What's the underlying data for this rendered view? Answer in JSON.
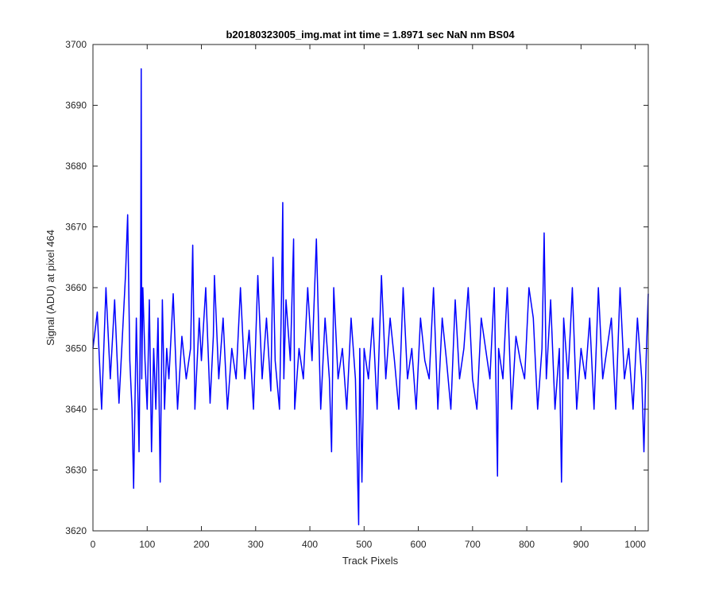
{
  "chart_data": {
    "type": "line",
    "title": "b20180323005_img.mat int time = 1.8971 sec  NaN nm BS04",
    "xlabel": "Track Pixels",
    "ylabel": "Signal (ADU) at pixel 464",
    "xlim": [
      0,
      1024
    ],
    "ylim": [
      3620,
      3700
    ],
    "xticks": [
      0,
      100,
      200,
      300,
      400,
      500,
      600,
      700,
      800,
      900,
      1000
    ],
    "yticks": [
      3620,
      3630,
      3640,
      3650,
      3660,
      3670,
      3680,
      3690,
      3700
    ],
    "grid": false,
    "line_color": "#0000ff",
    "series": [
      {
        "x": [
          0,
          8,
          16,
          24,
          32,
          40,
          48,
          56,
          60,
          64,
          68,
          72,
          75,
          80,
          85,
          88,
          89,
          90,
          92,
          96,
          100,
          104,
          108,
          112,
          116,
          120,
          124,
          128,
          132,
          136,
          140,
          148,
          156,
          164,
          172,
          180,
          184,
          188,
          196,
          200,
          208,
          216,
          222,
          224,
          232,
          240,
          248,
          256,
          264,
          272,
          280,
          288,
          296,
          304,
          312,
          320,
          328,
          332,
          336,
          344,
          348,
          350,
          352,
          356,
          364,
          370,
          372,
          380,
          388,
          396,
          404,
          412,
          420,
          428,
          436,
          440,
          444,
          452,
          460,
          468,
          476,
          484,
          490,
          492,
          496,
          500,
          508,
          516,
          524,
          532,
          540,
          548,
          556,
          564,
          572,
          580,
          588,
          596,
          604,
          612,
          620,
          628,
          636,
          644,
          652,
          660,
          668,
          676,
          684,
          692,
          700,
          708,
          716,
          724,
          732,
          740,
          746,
          748,
          756,
          764,
          772,
          780,
          788,
          796,
          804,
          812,
          820,
          828,
          832,
          836,
          844,
          852,
          860,
          864,
          868,
          876,
          884,
          892,
          900,
          908,
          916,
          924,
          932,
          940,
          948,
          956,
          964,
          972,
          980,
          988,
          996,
          1004,
          1012,
          1016,
          1020,
          1024
        ],
        "y": [
          3650,
          3656,
          3640,
          3660,
          3645,
          3658,
          3641,
          3655,
          3662,
          3672,
          3648,
          3640,
          3627,
          3655,
          3633,
          3660,
          3696,
          3645,
          3660,
          3648,
          3640,
          3658,
          3633,
          3650,
          3640,
          3655,
          3628,
          3658,
          3640,
          3650,
          3645,
          3659,
          3640,
          3652,
          3645,
          3650,
          3667,
          3640,
          3655,
          3648,
          3660,
          3641,
          3652,
          3662,
          3645,
          3655,
          3640,
          3650,
          3645,
          3660,
          3645,
          3653,
          3640,
          3662,
          3645,
          3655,
          3643,
          3665,
          3648,
          3640,
          3660,
          3674,
          3645,
          3658,
          3648,
          3668,
          3640,
          3650,
          3645,
          3660,
          3648,
          3668,
          3640,
          3655,
          3645,
          3633,
          3660,
          3645,
          3650,
          3640,
          3655,
          3645,
          3621,
          3650,
          3628,
          3650,
          3645,
          3655,
          3640,
          3662,
          3645,
          3655,
          3648,
          3640,
          3660,
          3645,
          3650,
          3640,
          3655,
          3648,
          3645,
          3660,
          3640,
          3655,
          3648,
          3640,
          3658,
          3645,
          3650,
          3660,
          3645,
          3640,
          3655,
          3650,
          3645,
          3660,
          3629,
          3650,
          3645,
          3660,
          3640,
          3652,
          3648,
          3645,
          3660,
          3655,
          3640,
          3650,
          3669,
          3645,
          3658,
          3640,
          3650,
          3628,
          3655,
          3645,
          3660,
          3640,
          3650,
          3645,
          3655,
          3640,
          3660,
          3645,
          3650,
          3655,
          3640,
          3660,
          3645,
          3650,
          3640,
          3655,
          3645,
          3633,
          3648,
          3659
        ]
      }
    ]
  }
}
